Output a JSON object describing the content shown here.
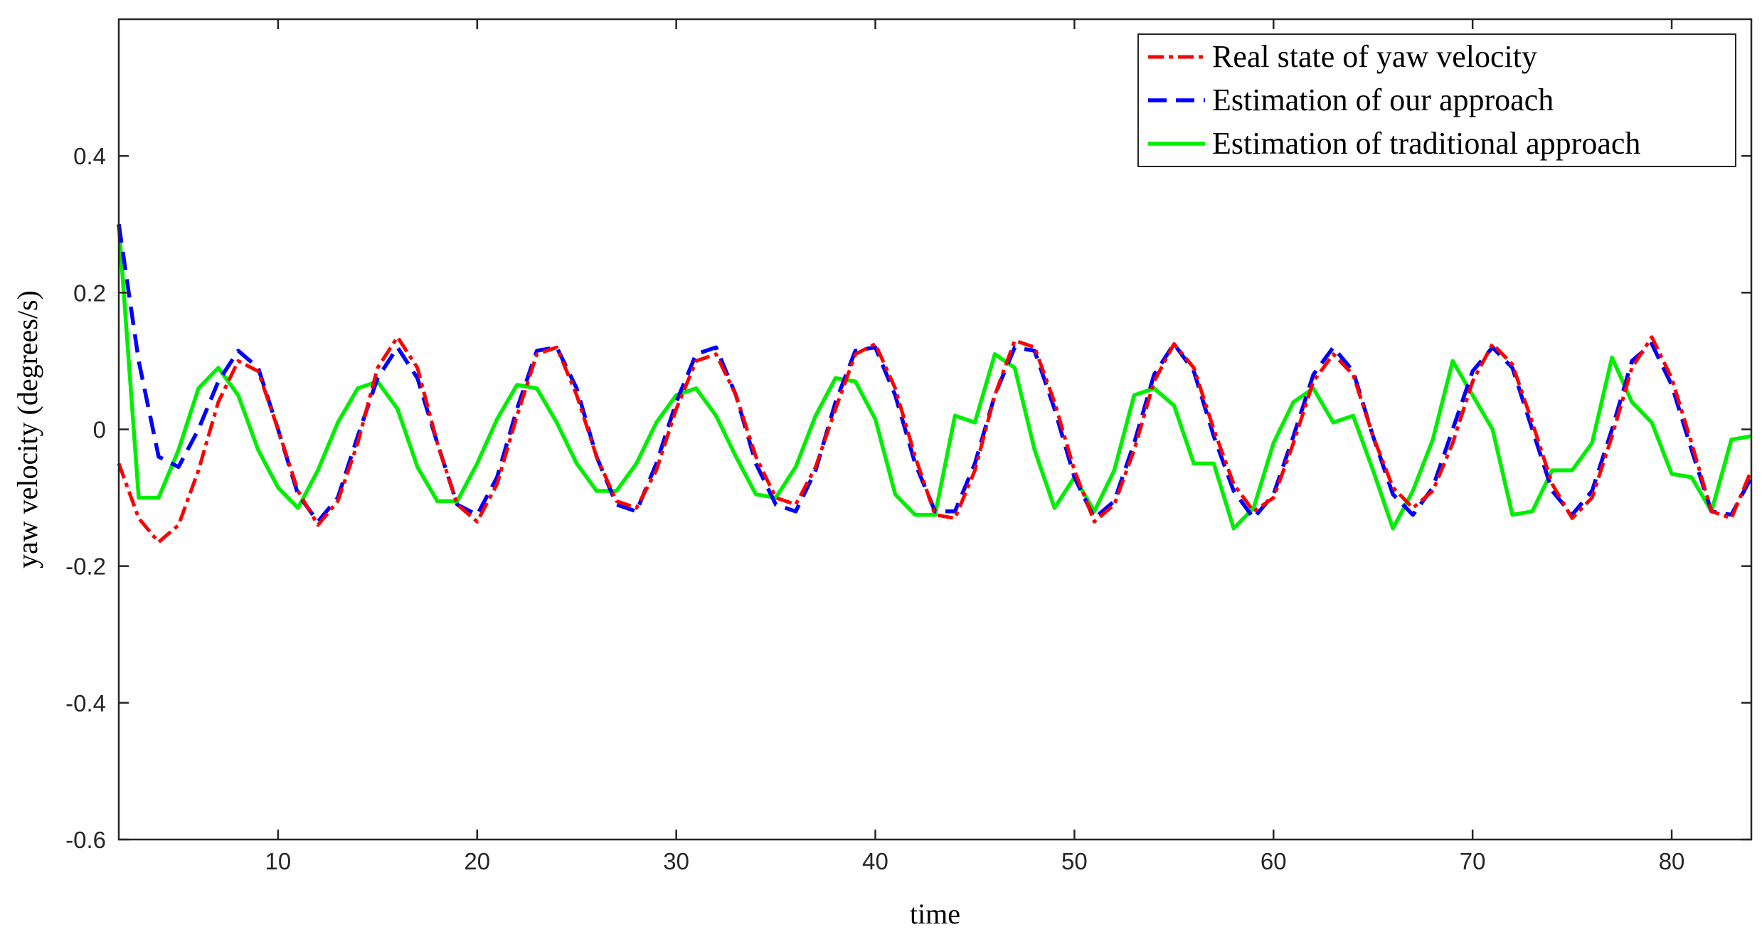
{
  "chart_data": {
    "type": "line",
    "title": "",
    "xlabel": "time",
    "ylabel": "yaw velocity (degrees/s)",
    "xlim": [
      2,
      84
    ],
    "ylim": [
      -0.6,
      0.6
    ],
    "x_ticks": [
      10,
      20,
      30,
      40,
      50,
      60,
      70,
      80
    ],
    "x_tick_labels": [
      "10",
      "20",
      "30",
      "40",
      "50",
      "60",
      "70",
      "80"
    ],
    "y_ticks": [
      -0.6,
      -0.4,
      -0.2,
      0,
      0.2,
      0.4
    ],
    "y_tick_labels": [
      "-0.6",
      "-0.4",
      "-0.2",
      "0",
      "0.2",
      "0.4"
    ],
    "grid": false,
    "legend_position": "top-right",
    "x": [
      2,
      3,
      4,
      5,
      6,
      7,
      8,
      9,
      10,
      11,
      12,
      13,
      14,
      15,
      16,
      17,
      18,
      19,
      20,
      21,
      22,
      23,
      24,
      25,
      26,
      27,
      28,
      29,
      30,
      31,
      32,
      33,
      34,
      35,
      36,
      37,
      38,
      39,
      40,
      41,
      42,
      43,
      44,
      45,
      46,
      47,
      48,
      49,
      50,
      51,
      52,
      53,
      54,
      55,
      56,
      57,
      58,
      59,
      60,
      61,
      62,
      63,
      64,
      65,
      66,
      67,
      68,
      69,
      70,
      71,
      72,
      73,
      74,
      75,
      76,
      77,
      78,
      79,
      80,
      81,
      82,
      83,
      84
    ],
    "series": [
      {
        "name": "Real state of yaw velocity",
        "color": "#ff0000",
        "dash": "dash-dot",
        "values": [
          -0.05,
          -0.13,
          -0.165,
          -0.14,
          -0.06,
          0.04,
          0.1,
          0.085,
          0.0,
          -0.09,
          -0.14,
          -0.105,
          -0.02,
          0.09,
          0.135,
          0.09,
          -0.02,
          -0.11,
          -0.135,
          -0.08,
          0.02,
          0.11,
          0.12,
          0.05,
          -0.04,
          -0.105,
          -0.115,
          -0.06,
          0.03,
          0.1,
          0.11,
          0.05,
          -0.04,
          -0.1,
          -0.11,
          -0.055,
          0.03,
          0.11,
          0.125,
          0.06,
          -0.04,
          -0.125,
          -0.13,
          -0.06,
          0.05,
          0.13,
          0.12,
          0.04,
          -0.06,
          -0.135,
          -0.11,
          -0.03,
          0.07,
          0.125,
          0.09,
          0.0,
          -0.08,
          -0.12,
          -0.1,
          -0.02,
          0.07,
          0.11,
          0.08,
          -0.01,
          -0.085,
          -0.115,
          -0.09,
          -0.02,
          0.07,
          0.125,
          0.095,
          0.01,
          -0.08,
          -0.13,
          -0.1,
          -0.01,
          0.09,
          0.135,
          0.075,
          -0.02,
          -0.12,
          -0.13,
          -0.06
        ]
      },
      {
        "name": "Estimation of our approach",
        "color": "#0000ff",
        "dash": "dashed",
        "values": [
          0.3,
          0.1,
          -0.04,
          -0.055,
          0.0,
          0.07,
          0.115,
          0.09,
          0.0,
          -0.095,
          -0.135,
          -0.1,
          -0.01,
          0.075,
          0.12,
          0.075,
          -0.02,
          -0.11,
          -0.125,
          -0.07,
          0.03,
          0.115,
          0.12,
          0.06,
          -0.04,
          -0.11,
          -0.12,
          -0.05,
          0.04,
          0.11,
          0.12,
          0.05,
          -0.05,
          -0.11,
          -0.12,
          -0.06,
          0.04,
          0.115,
          0.12,
          0.05,
          -0.05,
          -0.12,
          -0.12,
          -0.05,
          0.05,
          0.12,
          0.115,
          0.03,
          -0.07,
          -0.13,
          -0.105,
          -0.02,
          0.08,
          0.125,
          0.085,
          -0.01,
          -0.09,
          -0.13,
          -0.095,
          -0.01,
          0.08,
          0.12,
          0.085,
          -0.01,
          -0.095,
          -0.125,
          -0.085,
          0.0,
          0.085,
          0.12,
          0.09,
          0.0,
          -0.09,
          -0.125,
          -0.09,
          0.0,
          0.1,
          0.125,
          0.065,
          -0.03,
          -0.12,
          -0.125,
          -0.07
        ]
      },
      {
        "name": "Estimation of traditional approach",
        "color": "#00ee00",
        "dash": "solid",
        "values": [
          0.3,
          -0.1,
          -0.1,
          -0.03,
          0.06,
          0.09,
          0.05,
          -0.03,
          -0.085,
          -0.115,
          -0.06,
          0.01,
          0.06,
          0.07,
          0.03,
          -0.055,
          -0.105,
          -0.105,
          -0.05,
          0.015,
          0.065,
          0.06,
          0.01,
          -0.05,
          -0.09,
          -0.09,
          -0.05,
          0.01,
          0.05,
          0.06,
          0.02,
          -0.04,
          -0.095,
          -0.1,
          -0.055,
          0.02,
          0.075,
          0.07,
          0.015,
          -0.095,
          -0.125,
          -0.125,
          0.02,
          0.01,
          0.11,
          0.09,
          -0.03,
          -0.115,
          -0.07,
          -0.12,
          -0.06,
          0.05,
          0.06,
          0.035,
          -0.05,
          -0.05,
          -0.145,
          -0.115,
          -0.02,
          0.04,
          0.06,
          0.01,
          0.02,
          -0.06,
          -0.145,
          -0.09,
          -0.015,
          0.1,
          0.05,
          0.0,
          -0.125,
          -0.12,
          -0.06,
          -0.06,
          -0.02,
          0.105,
          0.04,
          0.01,
          -0.065,
          -0.07,
          -0.12,
          -0.015,
          -0.01
        ]
      }
    ]
  }
}
